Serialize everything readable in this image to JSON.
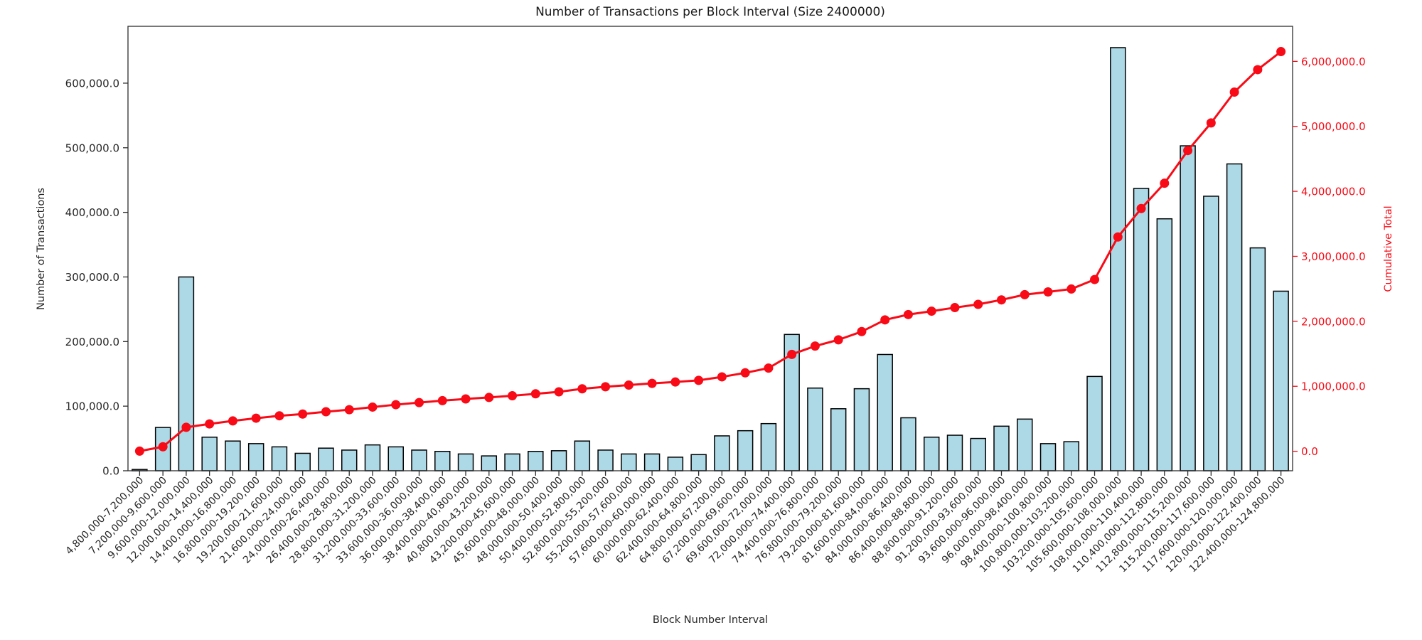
{
  "chart_data": {
    "type": "bar",
    "title": "Number of Transactions per Block Interval (Size 2400000)",
    "xlabel": "Block Number Interval",
    "grid": false,
    "legend": "none",
    "background": "#ffffff",
    "x_tick_rotation": 45,
    "bar_color": "#add8e6",
    "bar_edge_color": "#000000",
    "line_color": "#f80b16",
    "categories": [
      "4,800,000-7,200,000",
      "7,200,000-9,600,000",
      "9,600,000-12,000,000",
      "12,000,000-14,400,000",
      "14,400,000-16,800,000",
      "16,800,000-19,200,000",
      "19,200,000-21,600,000",
      "21,600,000-24,000,000",
      "24,000,000-26,400,000",
      "26,400,000-28,800,000",
      "28,800,000-31,200,000",
      "31,200,000-33,600,000",
      "33,600,000-36,000,000",
      "36,000,000-38,400,000",
      "38,400,000-40,800,000",
      "40,800,000-43,200,000",
      "43,200,000-45,600,000",
      "45,600,000-48,000,000",
      "48,000,000-50,400,000",
      "50,400,000-52,800,000",
      "52,800,000-55,200,000",
      "55,200,000-57,600,000",
      "57,600,000-60,000,000",
      "60,000,000-62,400,000",
      "62,400,000-64,800,000",
      "64,800,000-67,200,000",
      "67,200,000-69,600,000",
      "69,600,000-72,000,000",
      "72,000,000-74,400,000",
      "74,400,000-76,800,000",
      "76,800,000-79,200,000",
      "79,200,000-81,600,000",
      "81,600,000-84,000,000",
      "84,000,000-86,400,000",
      "86,400,000-88,800,000",
      "88,800,000-91,200,000",
      "91,200,000-93,600,000",
      "93,600,000-96,000,000",
      "96,000,000-98,400,000",
      "98,400,000-100,800,000",
      "100,800,000-103,200,000",
      "103,200,000-105,600,000",
      "105,600,000-108,000,000",
      "108,000,000-110,400,000",
      "110,400,000-112,800,000",
      "112,800,000-115,200,000",
      "115,200,000-117,600,000",
      "117,600,000-120,000,000",
      "120,000,000-122,400,000",
      "122,400,000-124,800,000"
    ],
    "series": [
      {
        "name": "Number of Transactions",
        "type": "bar",
        "axis": "left",
        "values": [
          2000,
          67000,
          300000,
          52000,
          46000,
          42000,
          37000,
          27000,
          35000,
          32000,
          40000,
          37000,
          32000,
          30000,
          26000,
          23000,
          26000,
          30000,
          31000,
          46000,
          32000,
          26000,
          26000,
          21000,
          25000,
          54000,
          62000,
          73000,
          211000,
          128000,
          96000,
          127000,
          180000,
          82000,
          52000,
          55000,
          50000,
          69000,
          80000,
          42000,
          45000,
          146000,
          655000,
          437000,
          390000,
          503000,
          425000,
          475000,
          345000,
          278000
        ]
      },
      {
        "name": "Cumulative Total",
        "type": "line",
        "axis": "right",
        "marker": "circle",
        "values": [
          2000,
          69000,
          369000,
          421000,
          467000,
          509000,
          546000,
          573000,
          608000,
          640000,
          680000,
          717000,
          749000,
          779000,
          805000,
          828000,
          854000,
          884000,
          915000,
          961000,
          993000,
          1019000,
          1045000,
          1066000,
          1091000,
          1145000,
          1207000,
          1280000,
          1491000,
          1619000,
          1715000,
          1842000,
          2022000,
          2104000,
          2156000,
          2211000,
          2261000,
          2330000,
          2410000,
          2452000,
          2497000,
          2643000,
          3298000,
          3735000,
          4125000,
          4628000,
          5053000,
          5528000,
          5873000,
          6151000
        ]
      }
    ],
    "left_axis": {
      "label": "Number of Transactions",
      "min": 0,
      "max": 688000,
      "ticks": [
        0,
        100000,
        200000,
        300000,
        400000,
        500000,
        600000
      ],
      "tick_format_suffix": ".0",
      "color": "#262626"
    },
    "right_axis": {
      "label": "Cumulative Total",
      "min": -300000,
      "max": 6540000,
      "ticks": [
        0,
        1000000,
        2000000,
        3000000,
        4000000,
        5000000,
        6000000
      ],
      "tick_format_suffix": ".0",
      "color": "#f80b16"
    }
  }
}
